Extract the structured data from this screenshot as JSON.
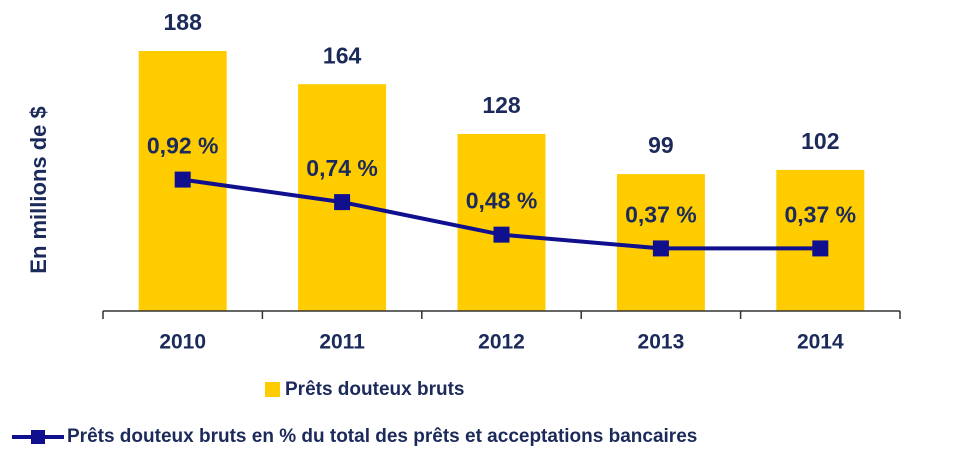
{
  "chart_data": {
    "type": "bar",
    "y_axis_label": "En millions de $",
    "categories": [
      "2010",
      "2011",
      "2012",
      "2013",
      "2014"
    ],
    "series": [
      {
        "name": "Prêts douteux bruts",
        "type": "bar",
        "color": "#FFCC00",
        "values": [
          188,
          164,
          128,
          99,
          102
        ]
      },
      {
        "name": "Prêts douteux bruts en % du total des prêts et acceptations bancaires",
        "type": "line",
        "axis": "y2",
        "color": "#10108f",
        "values": [
          0.92,
          0.74,
          0.48,
          0.37,
          0.37
        ],
        "value_labels": [
          "0,92 %",
          "0,74 %",
          "0,48 %",
          "0,37 %",
          "0,37 %"
        ]
      }
    ],
    "ylim": [
      0,
      200
    ],
    "y2lim": [
      -0.13,
      2.08
    ],
    "grid": false
  }
}
